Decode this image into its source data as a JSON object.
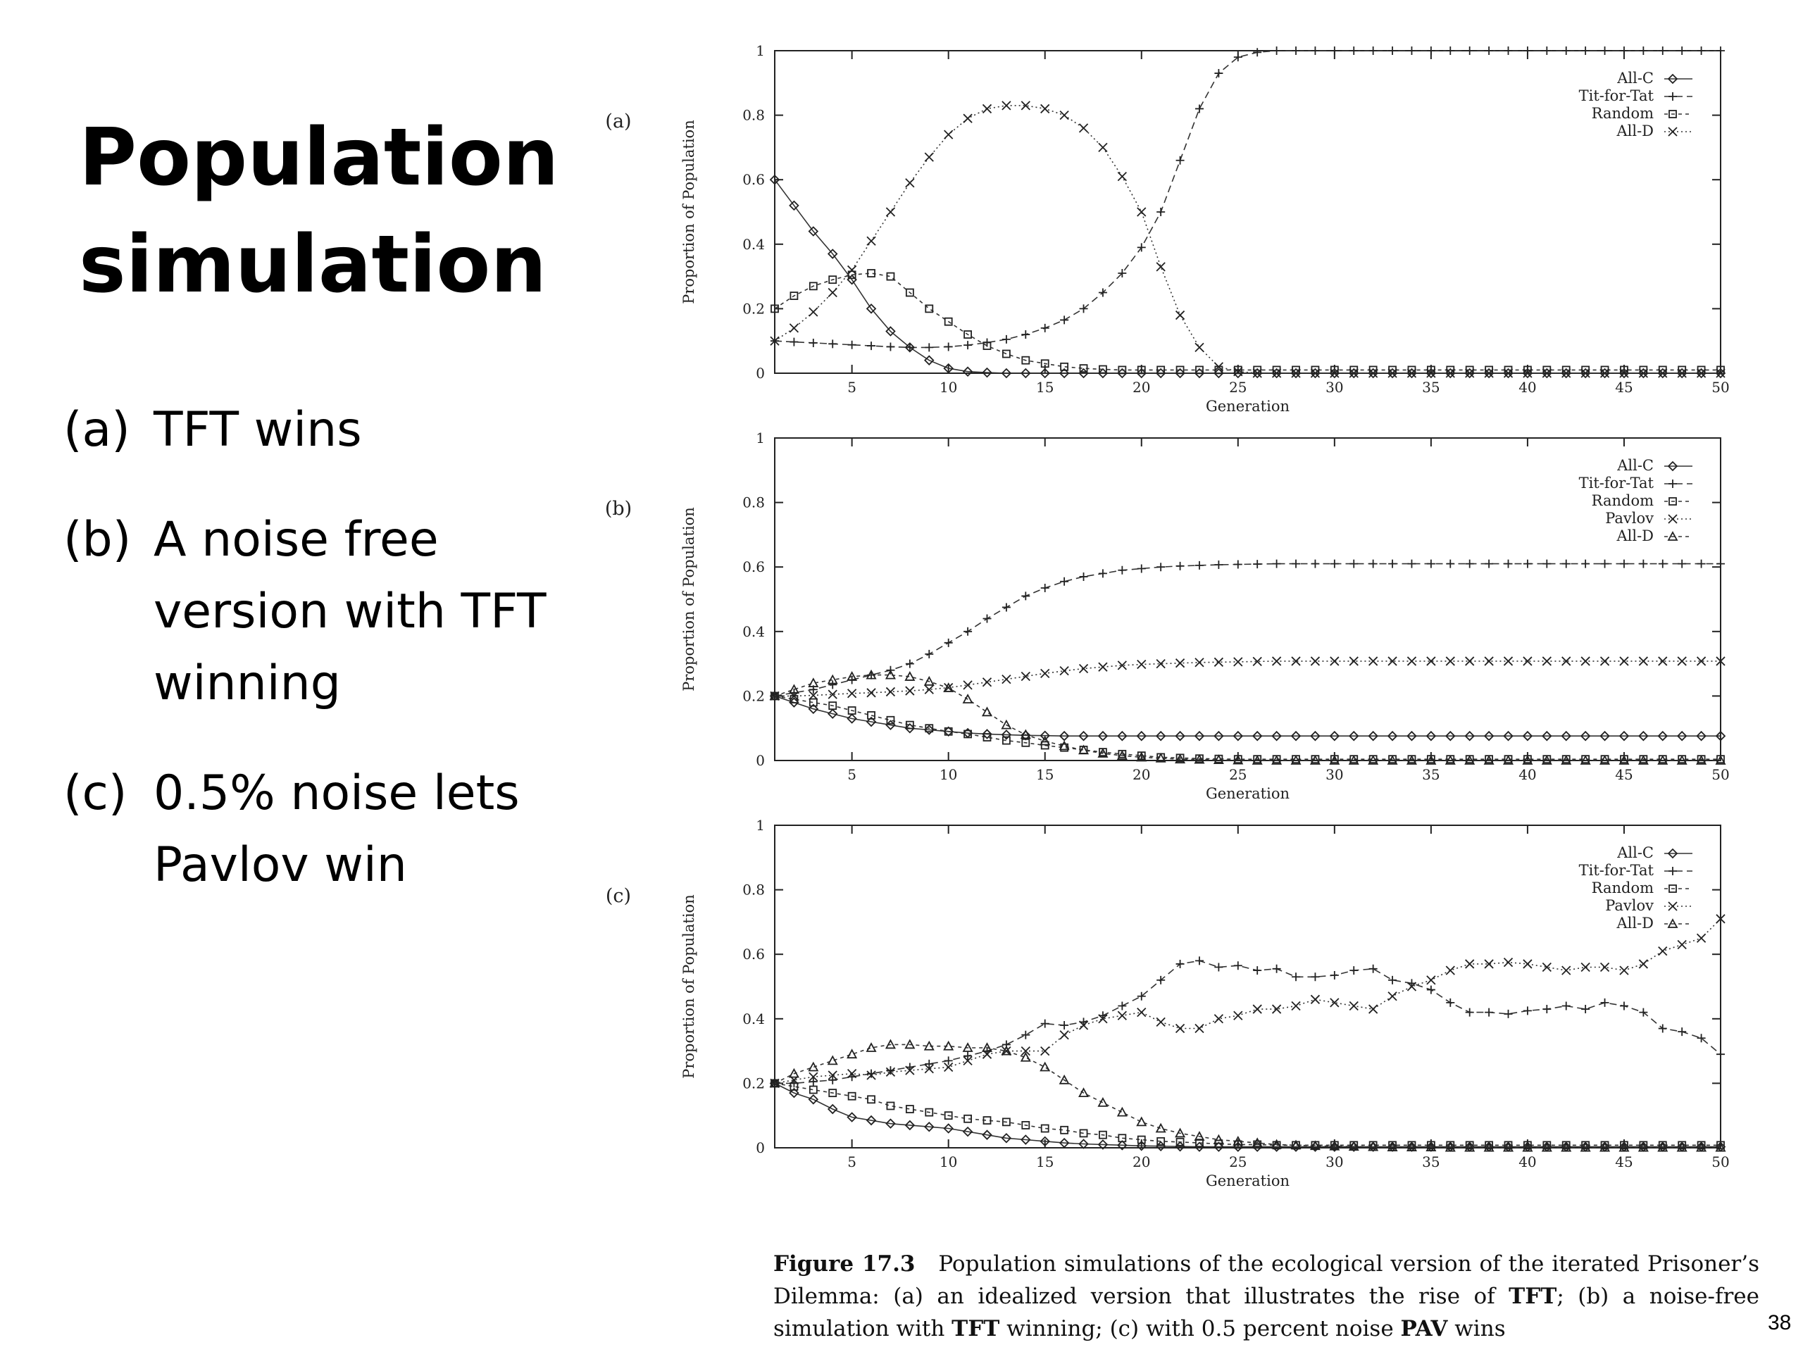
{
  "slide": {
    "title_line1": "Population",
    "title_line2": "simulation",
    "bullets": [
      {
        "marker": "(a)",
        "text": "TFT wins"
      },
      {
        "marker": "(b)",
        "text": "A noise free version with TFT winning"
      },
      {
        "marker": "(c)",
        "text": "0.5% noise lets Pavlov win"
      }
    ],
    "page_number": "38"
  },
  "caption": {
    "figure_label": "Figure 17.3",
    "part1": "Population simulations of the ecological version of the iterated Prisoner’s Dilemma: (a) an idealized version that illustrates the rise of ",
    "tft1": "TFT",
    "part2": "; (b) a noise-free simulation with ",
    "tft2": "TFT",
    "part3": " winning; (c) with 0.5 percent noise ",
    "pav": "PAV",
    "part4": " wins"
  },
  "chart_data": [
    {
      "panel_label": "(a)",
      "type": "line",
      "xlabel": "Generation",
      "ylabel": "Proportion of Population",
      "xlim": [
        1,
        50
      ],
      "ylim": [
        0,
        1
      ],
      "xticks": [
        5,
        10,
        15,
        20,
        25,
        30,
        35,
        40,
        45,
        50
      ],
      "yticks": [
        0,
        0.2,
        0.4,
        0.6,
        0.8,
        1
      ],
      "legend_position": "top-right",
      "x": [
        1,
        2,
        3,
        4,
        5,
        6,
        7,
        8,
        9,
        10,
        11,
        12,
        13,
        14,
        15,
        16,
        17,
        18,
        19,
        20,
        21,
        22,
        23,
        24,
        25,
        26,
        27,
        28,
        29,
        30,
        31,
        32,
        33,
        34,
        35,
        36,
        37,
        38,
        39,
        40,
        41,
        42,
        43,
        44,
        45,
        46,
        47,
        48,
        49,
        50
      ],
      "series": [
        {
          "name": "All-C",
          "marker": "diamond",
          "dash": "solid",
          "values": [
            0.6,
            0.52,
            0.44,
            0.37,
            0.29,
            0.2,
            0.13,
            0.08,
            0.04,
            0.015,
            0.005,
            0.002,
            0,
            0,
            0,
            0,
            0,
            0,
            0,
            0,
            0,
            0,
            0,
            0,
            0,
            0,
            0,
            0,
            0,
            0,
            0,
            0,
            0,
            0,
            0,
            0,
            0,
            0,
            0,
            0,
            0,
            0,
            0,
            0,
            0,
            0,
            0,
            0,
            0,
            0
          ]
        },
        {
          "name": "Tit-for-Tat",
          "marker": "plus",
          "dash": "long",
          "values": [
            0.1,
            0.097,
            0.094,
            0.091,
            0.088,
            0.085,
            0.082,
            0.08,
            0.08,
            0.082,
            0.087,
            0.095,
            0.105,
            0.12,
            0.14,
            0.165,
            0.2,
            0.25,
            0.31,
            0.39,
            0.5,
            0.66,
            0.82,
            0.93,
            0.98,
            0.995,
            1,
            1,
            1,
            1,
            1,
            1,
            1,
            1,
            1,
            1,
            1,
            1,
            1,
            1,
            1,
            1,
            1,
            1,
            1,
            1,
            1,
            1,
            1,
            1
          ]
        },
        {
          "name": "Random",
          "marker": "square",
          "dash": "short",
          "values": [
            0.2,
            0.24,
            0.27,
            0.29,
            0.305,
            0.31,
            0.3,
            0.25,
            0.2,
            0.16,
            0.12,
            0.085,
            0.06,
            0.04,
            0.03,
            0.02,
            0.015,
            0.012,
            0.01,
            0.01,
            0.01,
            0.01,
            0.01,
            0.01,
            0.01,
            0.01,
            0.01,
            0.01,
            0.01,
            0.01,
            0.01,
            0.01,
            0.01,
            0.01,
            0.01,
            0.01,
            0.01,
            0.01,
            0.01,
            0.01,
            0.01,
            0.01,
            0.01,
            0.01,
            0.01,
            0.01,
            0.01,
            0.01,
            0.01,
            0.01
          ]
        },
        {
          "name": "All-D",
          "marker": "x",
          "dash": "dotted",
          "values": [
            0.1,
            0.14,
            0.19,
            0.25,
            0.32,
            0.41,
            0.5,
            0.59,
            0.67,
            0.74,
            0.79,
            0.82,
            0.83,
            0.83,
            0.82,
            0.8,
            0.76,
            0.7,
            0.61,
            0.5,
            0.33,
            0.18,
            0.08,
            0.02,
            0.005,
            0,
            0,
            0,
            0,
            0,
            0,
            0,
            0,
            0,
            0,
            0,
            0,
            0,
            0,
            0,
            0,
            0,
            0,
            0,
            0,
            0,
            0,
            0,
            0,
            0
          ]
        }
      ]
    },
    {
      "panel_label": "(b)",
      "type": "line",
      "xlabel": "Generation",
      "ylabel": "Proportion of Population",
      "xlim": [
        1,
        50
      ],
      "ylim": [
        0,
        1
      ],
      "xticks": [
        5,
        10,
        15,
        20,
        25,
        30,
        35,
        40,
        45,
        50
      ],
      "yticks": [
        0,
        0.2,
        0.4,
        0.6,
        0.8,
        1
      ],
      "legend_position": "top-right",
      "x": [
        1,
        2,
        3,
        4,
        5,
        6,
        7,
        8,
        9,
        10,
        11,
        12,
        13,
        14,
        15,
        16,
        17,
        18,
        19,
        20,
        21,
        22,
        23,
        24,
        25,
        26,
        27,
        28,
        29,
        30,
        31,
        32,
        33,
        34,
        35,
        36,
        37,
        38,
        39,
        40,
        41,
        42,
        43,
        44,
        45,
        46,
        47,
        48,
        49,
        50
      ],
      "series": [
        {
          "name": "All-C",
          "marker": "diamond",
          "dash": "solid",
          "values": [
            0.2,
            0.18,
            0.16,
            0.145,
            0.13,
            0.12,
            0.11,
            0.1,
            0.095,
            0.09,
            0.085,
            0.082,
            0.08,
            0.078,
            0.077,
            0.076,
            0.076,
            0.076,
            0.076,
            0.076,
            0.076,
            0.076,
            0.076,
            0.076,
            0.076,
            0.076,
            0.076,
            0.076,
            0.076,
            0.076,
            0.076,
            0.076,
            0.076,
            0.076,
            0.076,
            0.076,
            0.076,
            0.076,
            0.076,
            0.076,
            0.076,
            0.076,
            0.076,
            0.076,
            0.076,
            0.076,
            0.076,
            0.076,
            0.076,
            0.076
          ]
        },
        {
          "name": "Tit-for-Tat",
          "marker": "plus",
          "dash": "long",
          "values": [
            0.2,
            0.21,
            0.22,
            0.235,
            0.25,
            0.265,
            0.28,
            0.3,
            0.33,
            0.365,
            0.4,
            0.44,
            0.475,
            0.51,
            0.535,
            0.555,
            0.57,
            0.58,
            0.59,
            0.595,
            0.6,
            0.603,
            0.605,
            0.607,
            0.608,
            0.609,
            0.61,
            0.61,
            0.61,
            0.61,
            0.61,
            0.61,
            0.61,
            0.61,
            0.61,
            0.61,
            0.61,
            0.61,
            0.61,
            0.61,
            0.61,
            0.61,
            0.61,
            0.61,
            0.61,
            0.61,
            0.61,
            0.61,
            0.61,
            0.61
          ]
        },
        {
          "name": "Random",
          "marker": "square",
          "dash": "short",
          "values": [
            0.2,
            0.19,
            0.18,
            0.17,
            0.155,
            0.14,
            0.125,
            0.11,
            0.1,
            0.09,
            0.082,
            0.072,
            0.062,
            0.055,
            0.047,
            0.04,
            0.033,
            0.026,
            0.02,
            0.015,
            0.01,
            0.008,
            0.006,
            0.005,
            0.004,
            0.004,
            0.004,
            0.004,
            0.004,
            0.004,
            0.004,
            0.004,
            0.004,
            0.004,
            0.004,
            0.004,
            0.004,
            0.004,
            0.004,
            0.004,
            0.004,
            0.004,
            0.004,
            0.004,
            0.004,
            0.004,
            0.004,
            0.004,
            0.004,
            0.004
          ]
        },
        {
          "name": "Pavlov",
          "marker": "x",
          "dash": "dotted",
          "values": [
            0.2,
            0.2,
            0.202,
            0.205,
            0.208,
            0.21,
            0.213,
            0.216,
            0.22,
            0.226,
            0.234,
            0.243,
            0.252,
            0.261,
            0.27,
            0.278,
            0.285,
            0.29,
            0.295,
            0.298,
            0.3,
            0.302,
            0.304,
            0.305,
            0.306,
            0.307,
            0.308,
            0.308,
            0.308,
            0.308,
            0.308,
            0.308,
            0.308,
            0.308,
            0.308,
            0.308,
            0.308,
            0.308,
            0.308,
            0.308,
            0.308,
            0.308,
            0.308,
            0.308,
            0.308,
            0.308,
            0.308,
            0.308,
            0.308,
            0.308
          ]
        },
        {
          "name": "All-D",
          "marker": "triangle",
          "dash": "short",
          "values": [
            0.2,
            0.22,
            0.24,
            0.25,
            0.26,
            0.265,
            0.265,
            0.26,
            0.245,
            0.225,
            0.19,
            0.15,
            0.11,
            0.08,
            0.06,
            0.045,
            0.032,
            0.022,
            0.015,
            0.01,
            0.007,
            0.004,
            0.003,
            0.002,
            0.001,
            0,
            0,
            0,
            0,
            0,
            0,
            0,
            0,
            0,
            0,
            0,
            0,
            0,
            0,
            0,
            0,
            0,
            0,
            0,
            0,
            0,
            0,
            0,
            0,
            0
          ]
        }
      ]
    },
    {
      "panel_label": "(c)",
      "type": "line",
      "xlabel": "Generation",
      "ylabel": "Proportion of Population",
      "xlim": [
        1,
        50
      ],
      "ylim": [
        0,
        1
      ],
      "xticks": [
        5,
        10,
        15,
        20,
        25,
        30,
        35,
        40,
        45,
        50
      ],
      "yticks": [
        0,
        0.2,
        0.4,
        0.6,
        0.8,
        1
      ],
      "legend_position": "top-right",
      "x": [
        1,
        2,
        3,
        4,
        5,
        6,
        7,
        8,
        9,
        10,
        11,
        12,
        13,
        14,
        15,
        16,
        17,
        18,
        19,
        20,
        21,
        22,
        23,
        24,
        25,
        26,
        27,
        28,
        29,
        30,
        31,
        32,
        33,
        34,
        35,
        36,
        37,
        38,
        39,
        40,
        41,
        42,
        43,
        44,
        45,
        46,
        47,
        48,
        49,
        50
      ],
      "series": [
        {
          "name": "All-C",
          "marker": "diamond",
          "dash": "solid",
          "values": [
            0.2,
            0.17,
            0.15,
            0.12,
            0.095,
            0.085,
            0.075,
            0.07,
            0.065,
            0.06,
            0.05,
            0.04,
            0.03,
            0.025,
            0.02,
            0.015,
            0.012,
            0.01,
            0.008,
            0.006,
            0.005,
            0.004,
            0.003,
            0.003,
            0.003,
            0.003,
            0.003,
            0.003,
            0.003,
            0.003,
            0.003,
            0.003,
            0.003,
            0.003,
            0.003,
            0.003,
            0.003,
            0.003,
            0.003,
            0.003,
            0.003,
            0.003,
            0.003,
            0.003,
            0.003,
            0.003,
            0.003,
            0.003,
            0.003,
            0.003
          ]
        },
        {
          "name": "Tit-for-Tat",
          "marker": "plus",
          "dash": "long",
          "values": [
            0.2,
            0.2,
            0.205,
            0.21,
            0.22,
            0.23,
            0.24,
            0.25,
            0.26,
            0.27,
            0.285,
            0.3,
            0.32,
            0.35,
            0.385,
            0.38,
            0.39,
            0.41,
            0.44,
            0.47,
            0.52,
            0.57,
            0.58,
            0.56,
            0.565,
            0.55,
            0.555,
            0.53,
            0.53,
            0.535,
            0.55,
            0.555,
            0.52,
            0.51,
            0.49,
            0.45,
            0.42,
            0.42,
            0.415,
            0.425,
            0.43,
            0.44,
            0.43,
            0.45,
            0.44,
            0.42,
            0.37,
            0.36,
            0.34,
            0.29
          ]
        },
        {
          "name": "Random",
          "marker": "square",
          "dash": "short",
          "values": [
            0.2,
            0.19,
            0.18,
            0.17,
            0.16,
            0.15,
            0.13,
            0.12,
            0.11,
            0.1,
            0.09,
            0.085,
            0.08,
            0.07,
            0.06,
            0.055,
            0.045,
            0.04,
            0.03,
            0.025,
            0.02,
            0.018,
            0.015,
            0.012,
            0.01,
            0.01,
            0.008,
            0.008,
            0.008,
            0.008,
            0.008,
            0.008,
            0.008,
            0.008,
            0.008,
            0.008,
            0.008,
            0.008,
            0.008,
            0.008,
            0.008,
            0.008,
            0.008,
            0.008,
            0.008,
            0.008,
            0.008,
            0.008,
            0.008,
            0.008
          ]
        },
        {
          "name": "Pavlov",
          "marker": "x",
          "dash": "dotted",
          "values": [
            0.2,
            0.21,
            0.22,
            0.225,
            0.23,
            0.225,
            0.235,
            0.24,
            0.245,
            0.25,
            0.27,
            0.29,
            0.3,
            0.3,
            0.3,
            0.35,
            0.38,
            0.4,
            0.41,
            0.42,
            0.39,
            0.37,
            0.37,
            0.4,
            0.41,
            0.43,
            0.43,
            0.44,
            0.46,
            0.45,
            0.44,
            0.43,
            0.47,
            0.5,
            0.52,
            0.55,
            0.57,
            0.57,
            0.575,
            0.57,
            0.56,
            0.55,
            0.56,
            0.56,
            0.55,
            0.57,
            0.61,
            0.63,
            0.65,
            0.71
          ]
        },
        {
          "name": "All-D",
          "marker": "triangle",
          "dash": "short",
          "values": [
            0.2,
            0.23,
            0.25,
            0.27,
            0.29,
            0.31,
            0.32,
            0.32,
            0.315,
            0.315,
            0.31,
            0.31,
            0.3,
            0.28,
            0.25,
            0.21,
            0.17,
            0.14,
            0.11,
            0.08,
            0.06,
            0.045,
            0.035,
            0.025,
            0.02,
            0.015,
            0.01,
            0.008,
            0.006,
            0.005,
            0.004,
            0.003,
            0.002,
            0.002,
            0.002,
            0.001,
            0.001,
            0.001,
            0.001,
            0.001,
            0.001,
            0.001,
            0.001,
            0.001,
            0.001,
            0.001,
            0.001,
            0.001,
            0.001,
            0.001
          ]
        }
      ]
    }
  ]
}
